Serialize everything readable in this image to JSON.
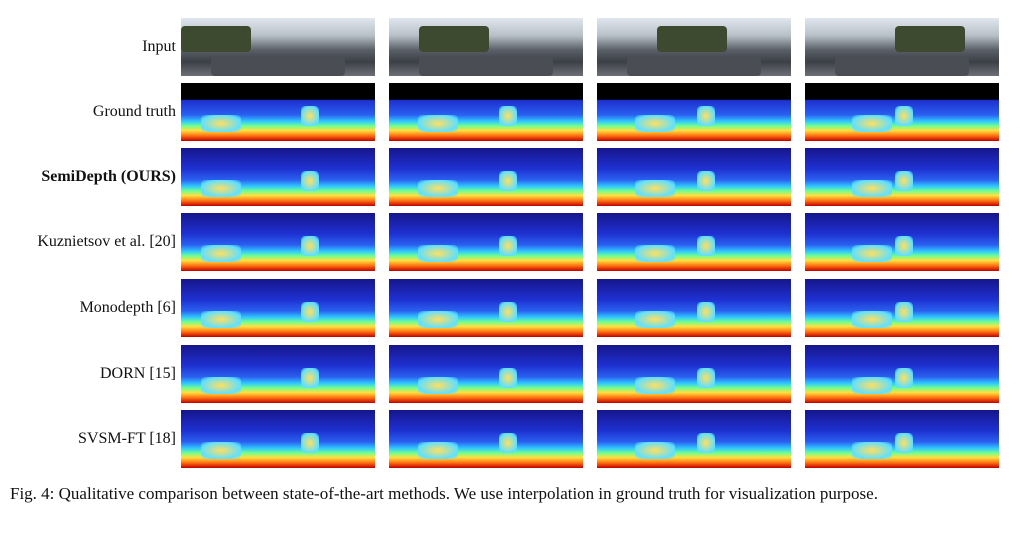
{
  "figure": {
    "rows": [
      "Input",
      "Ground truth",
      "SemiDepth (OURS)",
      "Kuznietsov et al. [20]",
      "Monodepth [6]",
      "DORN [15]",
      "SVSM-FT [18]"
    ],
    "caption": "Fig. 4: Qualitative comparison between state-of-the-art methods. We use interpolation in ground truth for visualization purpose."
  }
}
